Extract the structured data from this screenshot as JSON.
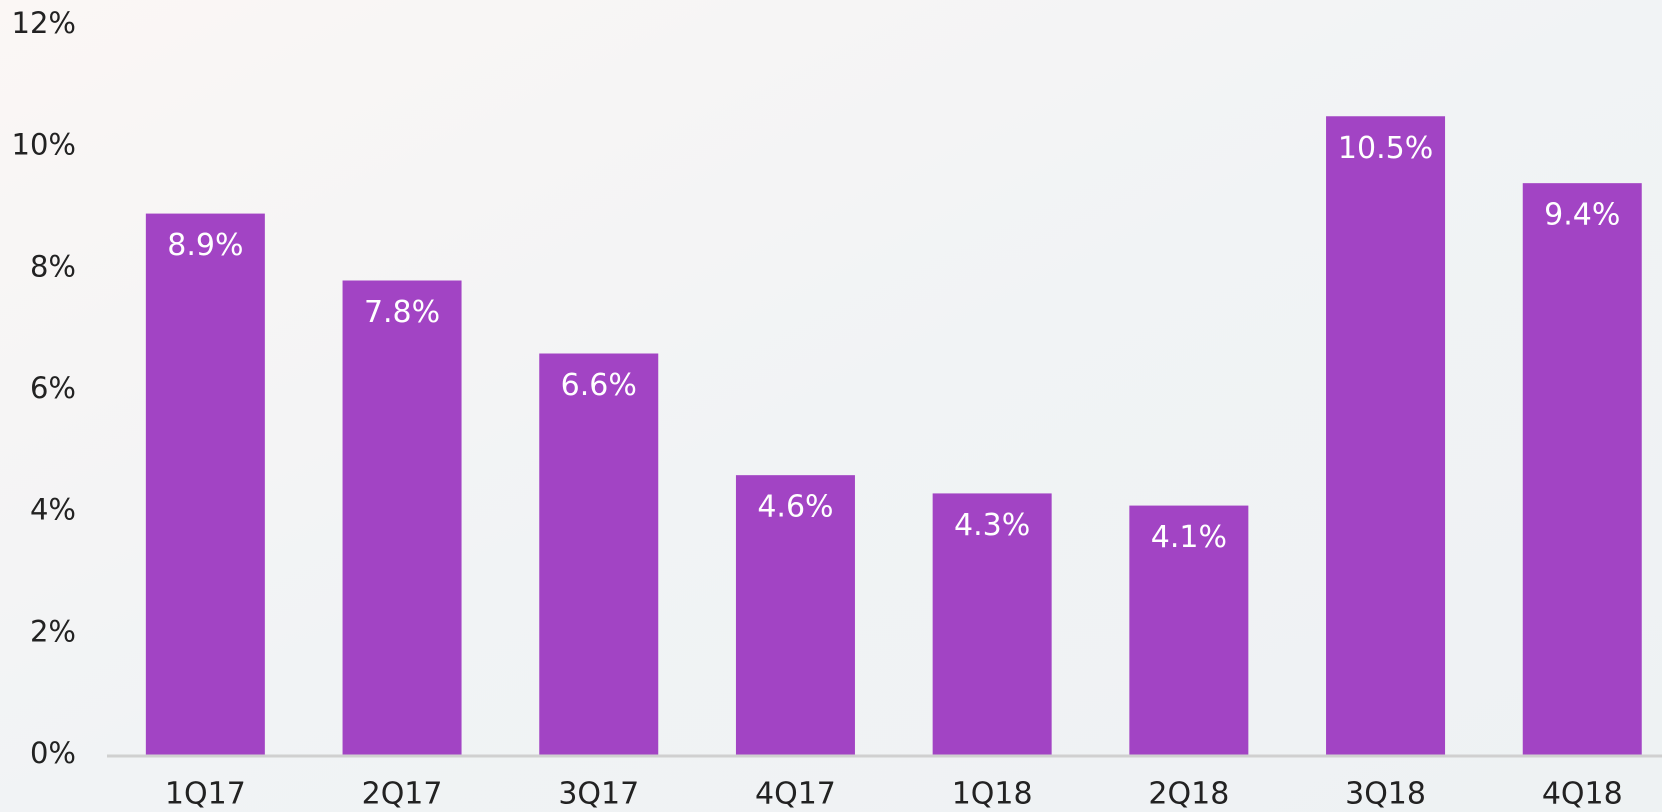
{
  "chart_data": {
    "type": "bar",
    "categories": [
      "1Q17",
      "2Q17",
      "3Q17",
      "4Q17",
      "1Q18",
      "2Q18",
      "3Q18",
      "4Q18"
    ],
    "values": [
      8.9,
      7.8,
      6.6,
      4.6,
      4.3,
      4.1,
      10.5,
      9.4
    ],
    "value_labels": [
      "8.9%",
      "7.8%",
      "6.6%",
      "4.6%",
      "4.3%",
      "4.1%",
      "10.5%",
      "9.4%"
    ],
    "color": "#a244c4",
    "ylim": [
      0,
      12
    ],
    "yticks": [
      {
        "value": 0,
        "label": "0%"
      },
      {
        "value": 2,
        "label": "2%"
      },
      {
        "value": 4,
        "label": "4%"
      },
      {
        "value": 6,
        "label": "6%"
      },
      {
        "value": 8,
        "label": "8%"
      },
      {
        "value": 10,
        "label": "10%"
      },
      {
        "value": 12,
        "label": "12%"
      }
    ],
    "grid": false
  }
}
